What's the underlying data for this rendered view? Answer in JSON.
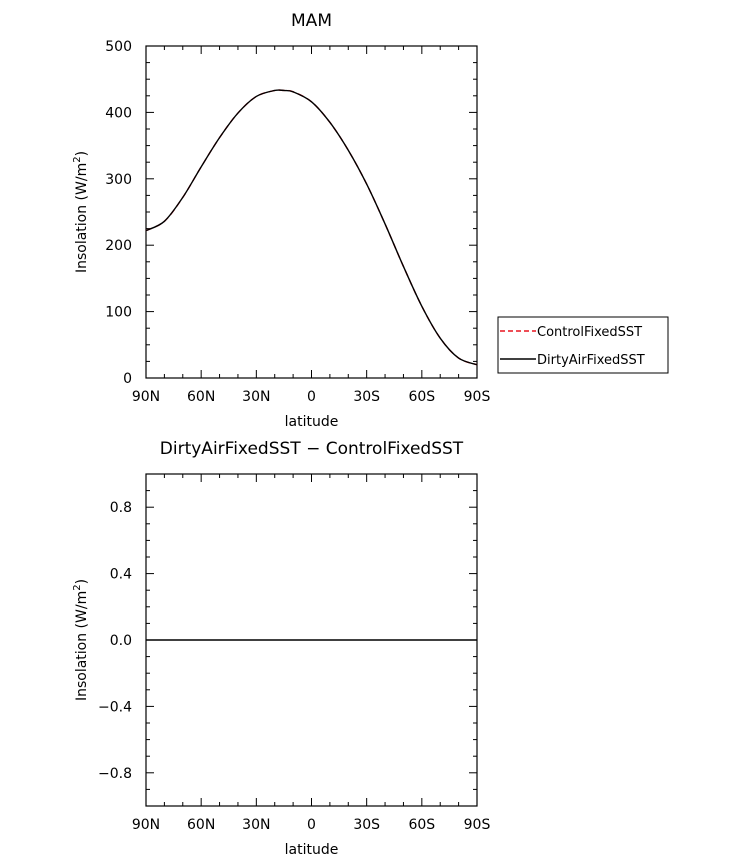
{
  "chart_data": [
    {
      "type": "line",
      "title": "MAM",
      "xlabel": "latitude",
      "ylabel": "Insolation (W/m",
      "ylabel_sup": "2",
      "ylabel_end": ")",
      "xlim": [
        90,
        -90
      ],
      "ylim": [
        0,
        500
      ],
      "x_ticks": [
        {
          "value": 90,
          "label": "90N"
        },
        {
          "value": 60,
          "label": "60N"
        },
        {
          "value": 30,
          "label": "30N"
        },
        {
          "value": 0,
          "label": "0"
        },
        {
          "value": -30,
          "label": "30S"
        },
        {
          "value": -60,
          "label": "60S"
        },
        {
          "value": -90,
          "label": "90S"
        }
      ],
      "y_ticks": [
        {
          "value": 0,
          "label": "0"
        },
        {
          "value": 100,
          "label": "100"
        },
        {
          "value": 200,
          "label": "200"
        },
        {
          "value": 300,
          "label": "300"
        },
        {
          "value": 400,
          "label": "400"
        },
        {
          "value": 500,
          "label": "500"
        }
      ],
      "grid": false,
      "legend_position": "right-outside",
      "x": [
        90,
        80,
        70,
        60,
        50,
        40,
        30,
        20,
        15,
        10,
        0,
        -10,
        -20,
        -30,
        -40,
        -50,
        -60,
        -70,
        -80,
        -90
      ],
      "series": [
        {
          "name": "ControlFixedSST",
          "color": "#e8141e",
          "style": "dashed",
          "values": [
            222,
            236,
            272,
            318,
            362,
            399,
            424,
            433,
            433,
            431,
            416,
            385,
            343,
            292,
            232,
            168,
            108,
            60,
            30,
            20
          ]
        },
        {
          "name": "DirtyAirFixedSST",
          "color": "#000000",
          "style": "solid",
          "values": [
            222,
            236,
            272,
            318,
            362,
            399,
            424,
            433,
            433,
            431,
            416,
            385,
            343,
            292,
            232,
            168,
            108,
            60,
            30,
            20
          ]
        }
      ]
    },
    {
      "type": "line",
      "title": "DirtyAirFixedSST − ControlFixedSST",
      "xlabel": "latitude",
      "ylabel": "Insolation (W/m",
      "ylabel_sup": "2",
      "ylabel_end": ")",
      "xlim": [
        90,
        -90
      ],
      "ylim": [
        -1,
        1
      ],
      "x_ticks": [
        {
          "value": 90,
          "label": "90N"
        },
        {
          "value": 60,
          "label": "60N"
        },
        {
          "value": 30,
          "label": "30N"
        },
        {
          "value": 0,
          "label": "0"
        },
        {
          "value": -30,
          "label": "30S"
        },
        {
          "value": -60,
          "label": "60S"
        },
        {
          "value": -90,
          "label": "90S"
        }
      ],
      "y_ticks": [
        {
          "value": -0.8,
          "label": "−0.8"
        },
        {
          "value": -0.4,
          "label": "−0.4"
        },
        {
          "value": 0.0,
          "label": "0.0"
        },
        {
          "value": 0.4,
          "label": "0.4"
        },
        {
          "value": 0.8,
          "label": "0.8"
        }
      ],
      "grid": false,
      "x": [
        90,
        -90
      ],
      "series": [
        {
          "color": "#000000",
          "style": "solid",
          "values": [
            0,
            0
          ]
        }
      ]
    }
  ]
}
